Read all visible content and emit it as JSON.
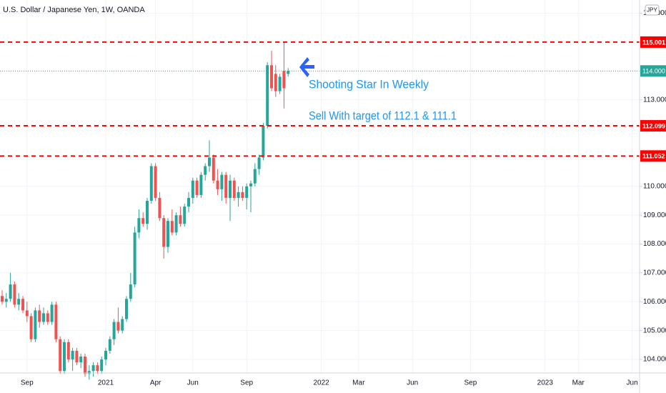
{
  "chart_data": {
    "type": "candlestick",
    "title": "U.S. Dollar / Japanese Yen, 1W, OANDA",
    "currency": "JPY",
    "up_color": "#26a69a",
    "down_color": "#ef5350",
    "categories": [
      null,
      null,
      null,
      null,
      null,
      null,
      "Sep",
      null,
      null,
      null,
      null,
      null,
      null,
      null,
      null,
      null,
      null,
      null,
      null,
      null,
      null,
      null,
      null,
      null,
      null,
      "2021",
      null,
      null,
      null,
      null,
      null,
      null,
      null,
      null,
      null,
      null,
      null,
      "Apr",
      null,
      null,
      null,
      null,
      null,
      null,
      null,
      null,
      "Jun",
      null,
      null,
      null,
      null,
      null,
      null,
      null,
      null,
      null,
      null,
      null,
      null,
      "Sep",
      null,
      null,
      null,
      null,
      null,
      null,
      null,
      null,
      null,
      null,
      null,
      null,
      null,
      null,
      null,
      null,
      null,
      "2022",
      null,
      null,
      null,
      null,
      null,
      null,
      null,
      null,
      "Mar",
      null,
      null,
      null,
      null,
      null,
      null,
      null,
      null,
      null,
      null,
      null,
      null,
      "Jun",
      null,
      null,
      null,
      null,
      null,
      null,
      null,
      null,
      null,
      null,
      null,
      null,
      null,
      "Sep",
      null,
      null,
      null,
      null,
      null,
      null,
      null,
      null,
      null,
      null,
      null,
      null,
      null,
      null,
      null,
      null,
      null,
      "2023",
      null,
      null,
      null,
      null,
      null,
      null,
      null,
      "Mar",
      null,
      null,
      null,
      null,
      null,
      null,
      null,
      null,
      null,
      null,
      null,
      null,
      "Jun",
      null
    ],
    "open": [
      106.2,
      106.0,
      106.1,
      106.6,
      105.9,
      106.1,
      105.7,
      105.5,
      104.7,
      105.7,
      105.3,
      105.6,
      105.3,
      105.9,
      104.7,
      103.6,
      104.6,
      104.0,
      104.3,
      103.9,
      104.1,
      103.5,
      103.6,
      103.8,
      103.6,
      104.0,
      104.3,
      104.7,
      105.3,
      105.0,
      105.4,
      106.1,
      106.6,
      108.4,
      108.9,
      108.7,
      109.5,
      110.7,
      109.6,
      108.9,
      107.9,
      108.8,
      108.4,
      109.0,
      108.7,
      109.3,
      109.6,
      110.2,
      109.7,
      110.4,
      110.7,
      111.0,
      110.2,
      109.9,
      110.4,
      109.6,
      110.2,
      109.6,
      109.8,
      109.6,
      110.0,
      110.1,
      110.6,
      111.0,
      112.1,
      114.2,
      113.9,
      113.3,
      114.0,
      113.9,
      null,
      null,
      null,
      null,
      null,
      null,
      null,
      null,
      null,
      null,
      null,
      null,
      null,
      null,
      null,
      null,
      null,
      null,
      null,
      null,
      null,
      null,
      null,
      null,
      null,
      null,
      null,
      null,
      null,
      null,
      null,
      null,
      null,
      null,
      null,
      null,
      null,
      null,
      null,
      null,
      null,
      null,
      null,
      null,
      null,
      null,
      null,
      null,
      null,
      null,
      null,
      null,
      null,
      null,
      null,
      null,
      null,
      null,
      null,
      null,
      null,
      null,
      null,
      null,
      null,
      null,
      null,
      null,
      null,
      null,
      null,
      null,
      null,
      null,
      null,
      null,
      null,
      null,
      null,
      null,
      null,
      null,
      null,
      null
    ],
    "high": [
      106.4,
      106.3,
      107.0,
      106.7,
      106.3,
      106.2,
      106.0,
      105.6,
      105.8,
      105.9,
      105.8,
      105.7,
      106.0,
      106.0,
      104.8,
      104.7,
      104.7,
      104.4,
      104.4,
      104.2,
      104.2,
      103.8,
      103.9,
      103.9,
      104.1,
      104.4,
      104.8,
      105.4,
      105.8,
      105.5,
      106.2,
      107.0,
      108.6,
      109.2,
      109.1,
      109.6,
      110.8,
      110.8,
      109.8,
      109.0,
      108.9,
      109.2,
      109.1,
      109.3,
      109.4,
      109.8,
      110.3,
      110.3,
      110.5,
      110.8,
      111.6,
      111.1,
      110.6,
      110.5,
      110.5,
      110.4,
      110.3,
      110.0,
      110.0,
      110.1,
      110.2,
      110.8,
      111.1,
      112.2,
      114.3,
      114.7,
      114.2,
      113.9,
      115.0,
      114.1,
      null,
      null,
      null,
      null,
      null,
      null,
      null,
      null,
      null,
      null,
      null,
      null,
      null,
      null,
      null,
      null,
      null,
      null,
      null,
      null,
      null,
      null,
      null,
      null,
      null,
      null,
      null,
      null,
      null,
      null,
      null,
      null,
      null,
      null,
      null,
      null,
      null,
      null,
      null,
      null,
      null,
      null,
      null,
      null,
      null,
      null,
      null,
      null,
      null,
      null,
      null,
      null,
      null,
      null,
      null,
      null,
      null,
      null,
      null,
      null,
      null,
      null,
      null,
      null,
      null,
      null,
      null,
      null,
      null,
      null,
      null,
      null,
      null,
      null,
      null,
      null,
      null,
      null,
      null,
      null,
      null,
      null,
      null,
      null
    ],
    "low": [
      105.9,
      105.8,
      106.0,
      105.8,
      105.7,
      105.6,
      105.3,
      104.6,
      104.6,
      105.1,
      105.2,
      105.2,
      105.2,
      104.6,
      103.5,
      103.5,
      103.9,
      103.6,
      103.8,
      103.7,
      103.4,
      103.3,
      103.4,
      103.5,
      103.5,
      103.8,
      104.2,
      104.5,
      104.9,
      104.9,
      105.3,
      106.0,
      106.5,
      108.2,
      108.6,
      108.5,
      109.4,
      109.5,
      108.8,
      107.5,
      107.7,
      108.3,
      108.3,
      108.6,
      108.6,
      109.1,
      109.4,
      109.6,
      109.6,
      110.2,
      110.5,
      110.1,
      109.7,
      109.5,
      109.4,
      108.8,
      109.5,
      109.3,
      109.5,
      109.2,
      109.1,
      110.0,
      110.4,
      110.9,
      112.0,
      113.3,
      113.1,
      113.2,
      112.7,
      113.8,
      null,
      null,
      null,
      null,
      null,
      null,
      null,
      null,
      null,
      null,
      null,
      null,
      null,
      null,
      null,
      null,
      null,
      null,
      null,
      null,
      null,
      null,
      null,
      null,
      null,
      null,
      null,
      null,
      null,
      null,
      null,
      null,
      null,
      null,
      null,
      null,
      null,
      null,
      null,
      null,
      null,
      null,
      null,
      null,
      null,
      null,
      null,
      null,
      null,
      null,
      null,
      null,
      null,
      null,
      null,
      null,
      null,
      null,
      null,
      null,
      null,
      null,
      null,
      null,
      null,
      null,
      null,
      null,
      null,
      null,
      null,
      null,
      null,
      null,
      null,
      null,
      null,
      null,
      null,
      null,
      null,
      null,
      null,
      null
    ],
    "close": [
      106.0,
      106.1,
      106.6,
      105.9,
      106.1,
      105.7,
      105.5,
      104.7,
      105.7,
      105.3,
      105.6,
      105.3,
      105.9,
      104.7,
      103.6,
      104.6,
      104.0,
      104.3,
      103.9,
      104.1,
      103.5,
      103.6,
      103.8,
      103.6,
      104.0,
      104.3,
      104.7,
      105.3,
      105.0,
      105.4,
      106.1,
      106.6,
      108.4,
      108.9,
      108.7,
      109.5,
      110.7,
      109.6,
      108.9,
      107.9,
      108.8,
      108.4,
      109.0,
      108.7,
      109.3,
      109.6,
      110.2,
      109.7,
      110.4,
      110.7,
      111.0,
      110.2,
      109.9,
      110.4,
      109.6,
      110.2,
      109.6,
      109.8,
      109.6,
      110.0,
      110.1,
      110.6,
      111.0,
      112.1,
      114.2,
      113.4,
      113.3,
      113.8,
      113.4,
      114.0,
      null,
      null,
      null,
      null,
      null,
      null,
      null,
      null,
      null,
      null,
      null,
      null,
      null,
      null,
      null,
      null,
      null,
      null,
      null,
      null,
      null,
      null,
      null,
      null,
      null,
      null,
      null,
      null,
      null,
      null,
      null,
      null,
      null,
      null,
      null,
      null,
      null,
      null,
      null,
      null,
      null,
      null,
      null,
      null,
      null,
      null,
      null,
      null,
      null,
      null,
      null,
      null,
      null,
      null,
      null,
      null,
      null,
      null,
      null,
      null,
      null,
      null,
      null,
      null,
      null,
      null,
      null,
      null,
      null,
      null,
      null,
      null,
      null,
      null,
      null,
      null,
      null,
      null,
      null,
      null,
      null,
      null,
      null,
      null
    ],
    "ylim": [
      103.53,
      116.46
    ],
    "yticks": [
      {
        "value": 104,
        "label": "104.000"
      },
      {
        "value": 105,
        "label": "105.000"
      },
      {
        "value": 106,
        "label": "106.000"
      },
      {
        "value": 107,
        "label": "107.000"
      },
      {
        "value": 108,
        "label": "108.000"
      },
      {
        "value": 109,
        "label": "109.000"
      },
      {
        "value": 110,
        "label": "110.000"
      },
      {
        "value": 113,
        "label": "113.000"
      },
      {
        "value": 116,
        "label": "116.000"
      }
    ],
    "grid": true,
    "hlines": [
      {
        "value": 115.001,
        "color": "#ff0000"
      },
      {
        "value": 112.099,
        "color": "#ff0000"
      },
      {
        "value": 111.052,
        "color": "#ff0000"
      }
    ],
    "last_price": {
      "value": 114,
      "label": "114.000",
      "color": "#26a69a"
    },
    "annotations": [
      "Shooting Star In Weekly",
      "Sell With target of 112.1 & 111.1"
    ],
    "annotation_color": "#2196f3"
  }
}
